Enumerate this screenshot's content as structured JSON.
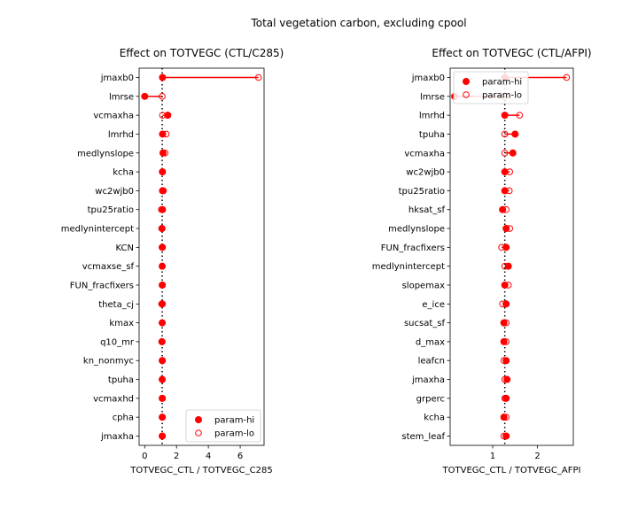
{
  "suptitle": "Total vegetation carbon, excluding cpool",
  "chart_data": [
    {
      "type": "dumbbell",
      "title": "Effect on TOTVEGC (CTL/C285)",
      "xlabel": "TOTVEGC_CTL / TOTVEGC_C285",
      "xlim": [
        -0.35,
        7.5
      ],
      "xticks": [
        0,
        2,
        4,
        6
      ],
      "reference_x": 1.1,
      "legend_position": "lower-right",
      "legend": [
        {
          "label": "param-hi",
          "marker": "filled"
        },
        {
          "label": "param-lo",
          "marker": "open"
        }
      ],
      "categories": [
        "jmaxb0",
        "lmrse",
        "vcmaxha",
        "lmrhd",
        "medlynslope",
        "kcha",
        "wc2wjb0",
        "tpu25ratio",
        "medlynintercept",
        "KCN",
        "vcmaxse_sf",
        "FUN_fracfixers",
        "theta_cj",
        "kmax",
        "q10_mr",
        "kn_nonmyc",
        "tpuha",
        "vcmaxhd",
        "cpha",
        "jmaxha"
      ],
      "series": [
        {
          "name": "param-hi",
          "values": [
            1.12,
            0.0,
            1.45,
            1.12,
            1.15,
            1.12,
            1.12,
            1.12,
            1.08,
            1.1,
            1.1,
            1.1,
            1.08,
            1.1,
            1.08,
            1.1,
            1.1,
            1.1,
            1.1,
            1.1
          ]
        },
        {
          "name": "param-lo",
          "values": [
            7.15,
            1.1,
            1.12,
            1.35,
            1.28,
            1.1,
            1.18,
            1.05,
            1.1,
            1.12,
            1.1,
            1.12,
            1.12,
            1.1,
            1.1,
            1.12,
            1.1,
            1.12,
            1.12,
            1.12
          ]
        }
      ]
    },
    {
      "type": "dumbbell",
      "title": "Effect on TOTVEGC (CTL/AFPI)",
      "xlabel": "TOTVEGC_CTL / TOTVEGC_AFPI",
      "xlim": [
        0.05,
        2.8
      ],
      "xticks": [
        1,
        2
      ],
      "reference_x": 1.27,
      "legend_position": "upper-left",
      "legend": [
        {
          "label": "param-hi",
          "marker": "filled"
        },
        {
          "label": "param-lo",
          "marker": "open"
        }
      ],
      "categories": [
        "jmaxb0",
        "lmrse",
        "lmrhd",
        "tpuha",
        "vcmaxha",
        "wc2wjb0",
        "tpu25ratio",
        "hksat_sf",
        "medlynslope",
        "FUN_fracfixers",
        "medlynintercept",
        "slopemax",
        "e_ice",
        "sucsat_sf",
        "d_max",
        "leafcn",
        "jmaxha",
        "grperc",
        "kcha",
        "stem_leaf"
      ],
      "series": [
        {
          "name": "param-hi",
          "values": [
            1.27,
            0.15,
            1.27,
            1.5,
            1.45,
            1.27,
            1.27,
            1.22,
            1.3,
            1.3,
            1.35,
            1.27,
            1.3,
            1.25,
            1.25,
            1.3,
            1.32,
            1.3,
            1.25,
            1.3
          ]
        },
        {
          "name": "param-lo",
          "values": [
            2.65,
            1.27,
            1.6,
            1.27,
            1.27,
            1.38,
            1.37,
            1.3,
            1.38,
            1.2,
            1.27,
            1.35,
            1.22,
            1.3,
            1.3,
            1.25,
            1.27,
            1.27,
            1.3,
            1.25
          ]
        }
      ]
    }
  ]
}
